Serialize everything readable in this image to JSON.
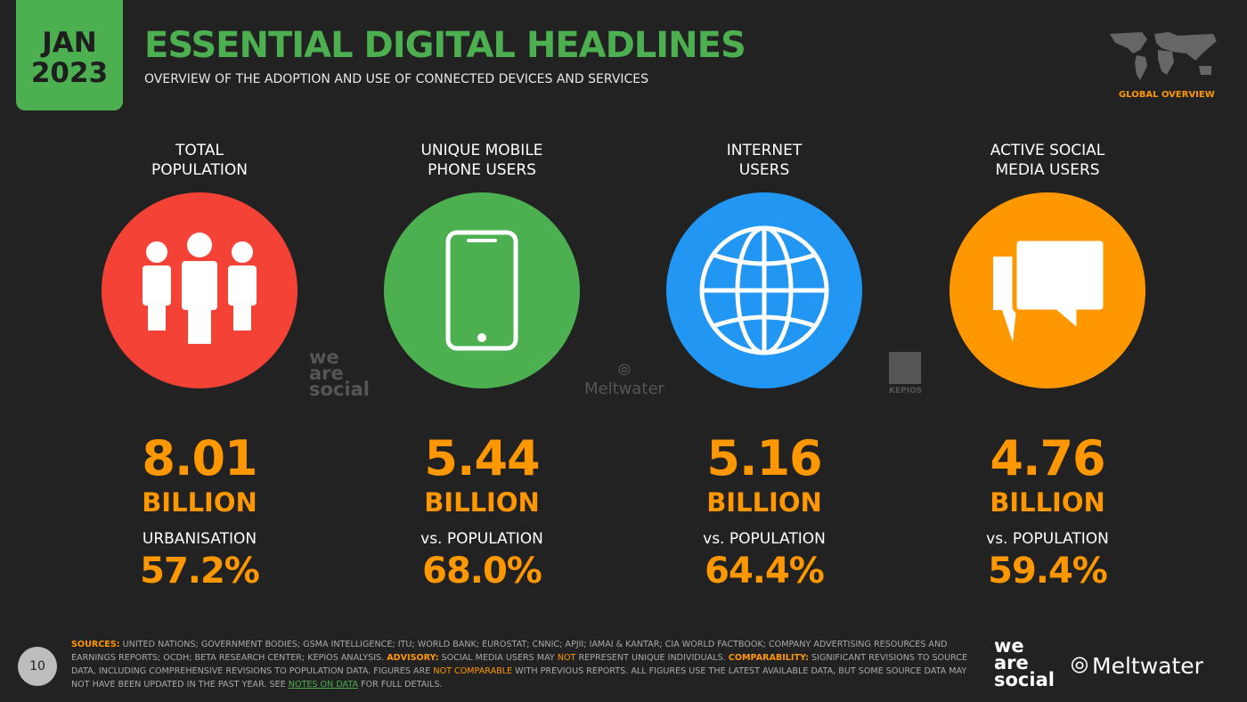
{
  "header": {
    "month": "JAN",
    "year": "2023",
    "title": "ESSENTIAL DIGITAL HEADLINES",
    "subtitle": "OVERVIEW OF THE ADOPTION AND USE OF CONNECTED DEVICES AND SERVICES",
    "region": "GLOBAL OVERVIEW"
  },
  "colors": {
    "background": "#222222",
    "green": "#4caf50",
    "red": "#f44336",
    "blue": "#2196f3",
    "orange": "#ff9800"
  },
  "stats": [
    {
      "label1": "TOTAL",
      "label2": "POPULATION",
      "icon": "people-icon",
      "value": "8.01",
      "unit": "BILLION",
      "sublabel": "URBANISATION",
      "percent": "57.2%"
    },
    {
      "label1": "UNIQUE MOBILE",
      "label2": "PHONE USERS",
      "icon": "mobile-phone-icon",
      "value": "5.44",
      "unit": "BILLION",
      "sublabel": "vs. POPULATION",
      "percent": "68.0%"
    },
    {
      "label1": "INTERNET",
      "label2": "USERS",
      "icon": "globe-icon",
      "value": "5.16",
      "unit": "BILLION",
      "sublabel": "vs. POPULATION",
      "percent": "64.4%"
    },
    {
      "label1": "ACTIVE SOCIAL",
      "label2": "MEDIA USERS",
      "icon": "chat-bubbles-icon",
      "value": "4.76",
      "unit": "BILLION",
      "sublabel": "vs. POPULATION",
      "percent": "59.4%"
    }
  ],
  "logos": {
    "wearesocial": "we are social",
    "meltwater": "Meltwater",
    "kepios": "KEPIOS"
  },
  "footer": {
    "page": "10",
    "sources_label": "SOURCES:",
    "sources": " UNITED NATIONS; GOVERNMENT BODIES; GSMA INTELLIGENCE; ITU; WORLD BANK; EUROSTAT; CNNIC; APJII; IAMAI & KANTAR; CIA WORLD FACTBOOK; COMPANY ADVERTISING RESOURCES AND EARNINGS REPORTS; OCDH; BETA RESEARCH CENTER; KEPIOS ANALYSIS. ",
    "advisory_label": "ADVISORY:",
    "advisory_a": " SOCIAL MEDIA USERS MAY ",
    "advisory_not": "NOT",
    "advisory_b": " REPRESENT UNIQUE INDIVIDUALS. ",
    "comparability_label": "COMPARABILITY:",
    "comparability_a": " SIGNIFICANT REVISIONS TO SOURCE DATA, INCLUDING COMPREHENSIVE REVISIONS TO POPULATION DATA. FIGURES ARE ",
    "not_comparable": "NOT COMPARABLE",
    "comparability_b": " WITH PREVIOUS REPORTS. ALL FIGURES USE THE LATEST AVAILABLE DATA, BUT SOME SOURCE DATA MAY NOT HAVE BEEN UPDATED IN THE PAST YEAR. SEE ",
    "notes_link": "NOTES ON DATA",
    "end": " FOR FULL DETAILS."
  }
}
